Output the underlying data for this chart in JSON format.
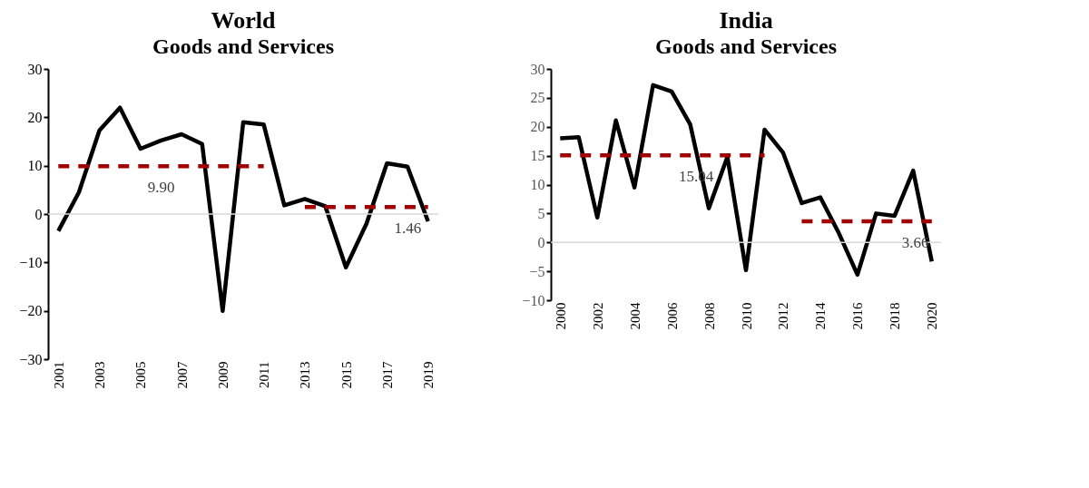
{
  "chart_data": [
    {
      "type": "line",
      "title": "World",
      "subtitle": "Goods and Services",
      "categories": [
        "2001",
        null,
        "2003",
        null,
        "2005",
        null,
        "2007",
        null,
        "2009",
        null,
        "2011",
        null,
        "2013",
        null,
        "2015",
        null,
        "2017",
        null,
        "2019"
      ],
      "series": [
        {
          "color": "#000000",
          "line_style": "solid",
          "values": [
            -3.5,
            4.5,
            17.3,
            22,
            13.5,
            15.2,
            16.5,
            14.5,
            -20,
            19,
            18.5,
            1.8,
            3.1,
            1.6,
            -11,
            -2,
            10.5,
            9.8,
            -1.5
          ]
        },
        {
          "color": "#a00000",
          "line_style": "dashed",
          "values": [
            9.9,
            9.9,
            9.9,
            9.9,
            9.9,
            9.9,
            9.9,
            9.9,
            9.9,
            9.9,
            9.9,
            null,
            null,
            null,
            null,
            null,
            null,
            null,
            null
          ]
        },
        {
          "color": "#a00000",
          "line_style": "dashed",
          "values": [
            null,
            null,
            null,
            null,
            null,
            null,
            null,
            null,
            null,
            null,
            null,
            null,
            1.46,
            1.46,
            1.46,
            1.46,
            1.46,
            1.46,
            1.46
          ]
        }
      ],
      "ylim": [
        -30,
        30
      ],
      "yticks": [
        -30,
        -20,
        -10,
        0,
        10,
        20,
        30
      ],
      "ref_lines": [
        {
          "axis": "y",
          "value": 0,
          "color": "#d9d9d9"
        }
      ],
      "annotations": [
        {
          "text": "9.90",
          "x": "2005",
          "y": 9.9
        },
        {
          "text": "1.46",
          "x": "2017",
          "y": 1.46
        }
      ],
      "grid": false,
      "marker": "none"
    },
    {
      "type": "line",
      "title": "India",
      "subtitle": "Goods and Services",
      "categories": [
        "2000",
        null,
        "2002",
        null,
        "2004",
        null,
        "2006",
        null,
        "2008",
        null,
        "2010",
        null,
        "2012",
        null,
        "2014",
        null,
        "2016",
        null,
        "2018",
        null,
        "2020"
      ],
      "series": [
        {
          "color": "#000000",
          "line_style": "solid",
          "values": [
            18,
            18.2,
            4.3,
            21.1,
            9.5,
            27.2,
            26.1,
            20.4,
            5.9,
            14.8,
            -4.8,
            19.5,
            15.5,
            6.8,
            7.8,
            1.6,
            -5.6,
            5,
            4.6,
            12.4,
            -3.3
          ]
        },
        {
          "color": "#a00000",
          "line_style": "dashed",
          "values": [
            15.04,
            15.04,
            15.04,
            15.04,
            15.04,
            15.04,
            15.04,
            15.04,
            15.04,
            15.04,
            15.04,
            15.04,
            null,
            null,
            null,
            null,
            null,
            null,
            null,
            null,
            null
          ]
        },
        {
          "color": "#a00000",
          "line_style": "dashed",
          "values": [
            null,
            null,
            null,
            null,
            null,
            null,
            null,
            null,
            null,
            null,
            null,
            null,
            null,
            3.66,
            3.66,
            3.66,
            3.66,
            3.66,
            3.66,
            3.66,
            3.66
          ]
        }
      ],
      "ylim": [
        -10,
        30
      ],
      "yticks": [
        -10,
        -5,
        0,
        5,
        10,
        15,
        20,
        25,
        30
      ],
      "ref_lines": [
        {
          "axis": "y",
          "value": 0,
          "color": "#d9d9d9"
        }
      ],
      "annotations": [
        {
          "text": "15.04",
          "x": "2006",
          "y": 15.04
        },
        {
          "text": "3.66",
          "x": "2018",
          "y": 3.66
        }
      ],
      "grid": false,
      "marker": "none"
    }
  ]
}
